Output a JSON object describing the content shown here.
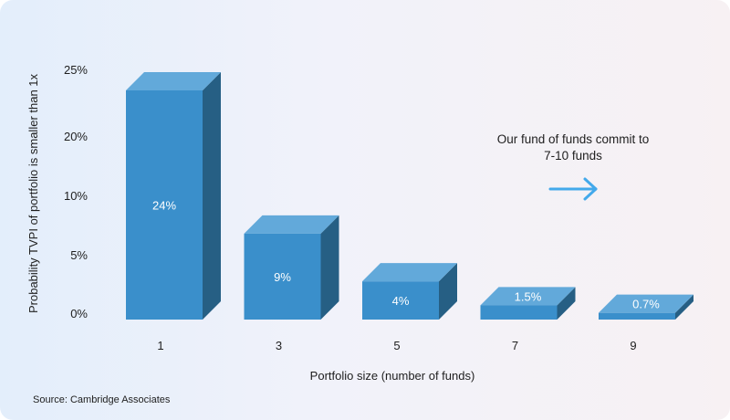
{
  "chart_data": {
    "type": "bar",
    "categories": [
      "1",
      "3",
      "5",
      "7",
      "9"
    ],
    "values": [
      24,
      9,
      4,
      1.5,
      0.7
    ],
    "data_labels": [
      "24%",
      "9%",
      "4%",
      "1.5%",
      "0.7%"
    ],
    "y_tick_labels": [
      "0%",
      "5%",
      "10%",
      "20%",
      "25%"
    ],
    "xlabel": "Portfolio size (number of funds)",
    "ylabel": "Probability TVPI of portfolio is smaller than 1x",
    "annotation_lines": [
      "Our fund of funds commit to",
      "7-10 funds"
    ],
    "grid": false,
    "bar_style": "3d"
  },
  "source_text": "Source: Cambridge Associates",
  "colors": {
    "bar_front": "#3a8fcb",
    "bar_top": "#62a9da",
    "bar_side": "#265f84",
    "arrow": "#43a9eb",
    "text": "#1e1e1e"
  }
}
